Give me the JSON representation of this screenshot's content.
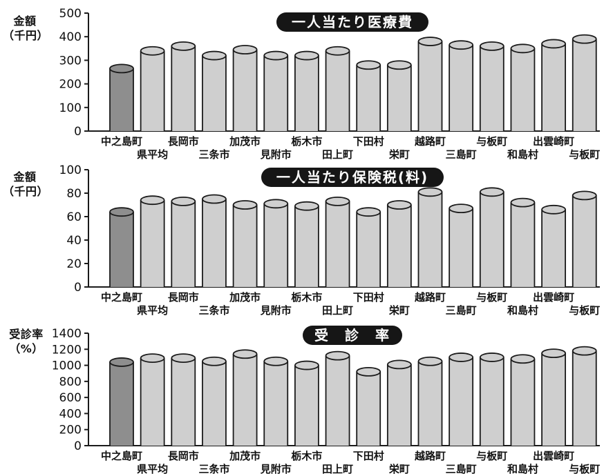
{
  "categories_row1": [
    "中之島町",
    "長岡市",
    "加茂市",
    "栃木市",
    "下田村",
    "越路町",
    "与板町",
    "出雲崎町"
  ],
  "categories_row2": [
    "県平均",
    "三条市",
    "見附市",
    "田上町",
    "栄町",
    "三島町",
    "和島村",
    "与板町"
  ],
  "colors": {
    "highlight": "#8e8e8e",
    "bar": "#cfcfcf",
    "outline": "#1a1a1a",
    "pill": "#161616"
  },
  "chart_data": [
    {
      "type": "bar",
      "title": "一人当たり医療費",
      "ylabel": "金額（千円）",
      "ylabel_lines": [
        "金額",
        "（千円）"
      ],
      "categories": [
        "中之島町",
        "県平均",
        "長岡市",
        "三条市",
        "加茂市",
        "見附市",
        "栃木市",
        "田上町",
        "下田村",
        "栄町",
        "越路町",
        "三島町",
        "与板町",
        "和島村",
        "出雲崎町",
        "与板町"
      ],
      "values": [
        265,
        340,
        360,
        320,
        345,
        320,
        320,
        340,
        280,
        280,
        380,
        365,
        360,
        350,
        370,
        390
      ],
      "ylim": [
        0,
        500
      ],
      "yticks": [
        "0",
        "100",
        "200",
        "300",
        "400",
        "500"
      ],
      "highlight_index": 0
    },
    {
      "type": "bar",
      "title": "一人当たり保険税(料)",
      "ylabel": "金額（千円）",
      "ylabel_lines": [
        "金額",
        "（千円）"
      ],
      "categories": [
        "中之島町",
        "県平均",
        "長岡市",
        "三条市",
        "加茂市",
        "見附市",
        "栃木市",
        "田上町",
        "下田村",
        "栄町",
        "越路町",
        "三島町",
        "与板町",
        "和島村",
        "出雲崎町",
        "与板町"
      ],
      "values": [
        64,
        74,
        73,
        75,
        70,
        71,
        69,
        73,
        64,
        70,
        81,
        67,
        81,
        72,
        66,
        78
      ],
      "ylim": [
        0,
        100
      ],
      "yticks": [
        "0",
        "20",
        "40",
        "60",
        "80",
        "100"
      ],
      "highlight_index": 0
    },
    {
      "type": "bar",
      "title": "受　診　率",
      "ylabel": "受診率（%）",
      "ylabel_lines": [
        "受診率",
        "（%）"
      ],
      "categories": [
        "中之島町",
        "県平均",
        "長岡市",
        "三条市",
        "加茂市",
        "見附市",
        "栃木市",
        "田上町",
        "下田村",
        "栄町",
        "越路町",
        "三島町",
        "与板町",
        "和島村",
        "出雲崎町",
        "与板町"
      ],
      "values": [
        1040,
        1090,
        1090,
        1050,
        1140,
        1050,
        1000,
        1120,
        920,
        1010,
        1050,
        1100,
        1100,
        1080,
        1150,
        1180
      ],
      "ylim": [
        0,
        1400
      ],
      "yticks": [
        "0",
        "200",
        "400",
        "600",
        "800",
        "1000",
        "1200",
        "1400"
      ],
      "highlight_index": 0
    }
  ]
}
